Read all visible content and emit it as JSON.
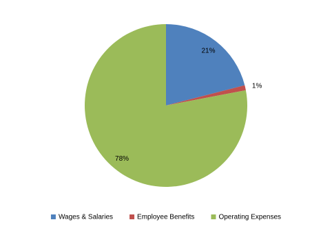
{
  "chart_data": {
    "type": "pie",
    "categories": [
      "Wages & Salaries",
      "Employee Benefits",
      "Operating Expenses"
    ],
    "values": [
      21,
      1,
      78
    ],
    "value_labels": [
      "21%",
      "1%",
      "78%"
    ],
    "colors": [
      "#4f81bd",
      "#c0504d",
      "#9bbb59"
    ],
    "legend": "bottom"
  }
}
